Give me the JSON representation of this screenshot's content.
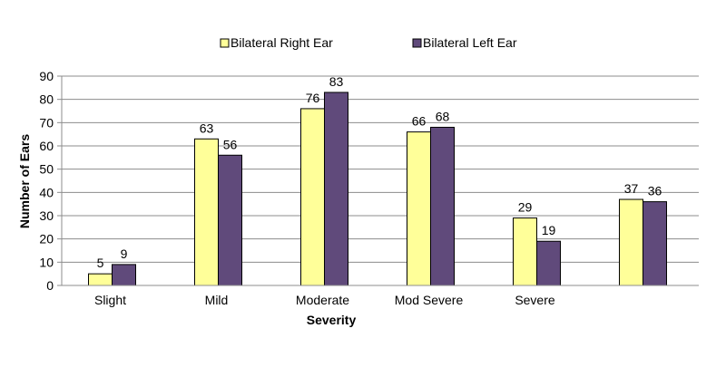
{
  "chart_data": {
    "type": "bar",
    "title": "",
    "xlabel": "Severity",
    "ylabel": "Number of Ears",
    "ylim": [
      0,
      90
    ],
    "yticks": [
      0,
      10,
      20,
      30,
      40,
      50,
      60,
      70,
      80,
      90
    ],
    "grid": true,
    "legend_position": "top",
    "categories": [
      "Slight",
      "Mild",
      "Moderate",
      "Mod Severe",
      "Severe",
      ""
    ],
    "series": [
      {
        "name": "Bilateral Right Ear",
        "color": "#FFFF99",
        "values": [
          5,
          63,
          76,
          66,
          29,
          37
        ]
      },
      {
        "name": "Bilateral Left Ear",
        "color": "#604A7B",
        "values": [
          9,
          56,
          83,
          68,
          19,
          36
        ]
      }
    ]
  }
}
